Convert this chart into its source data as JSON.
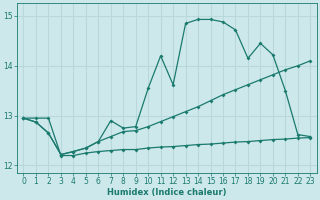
{
  "background_color": "#cde8eb",
  "grid_color": "#b8d8dc",
  "line_color": "#1a7a6e",
  "x_label": "Humidex (Indice chaleur)",
  "xlim": [
    -0.5,
    23.5
  ],
  "ylim": [
    11.85,
    15.25
  ],
  "yticks": [
    12,
    13,
    14,
    15
  ],
  "xticks": [
    0,
    1,
    2,
    3,
    4,
    5,
    6,
    7,
    8,
    9,
    10,
    11,
    12,
    13,
    14,
    15,
    16,
    17,
    18,
    19,
    20,
    21,
    22,
    23
  ],
  "series_flat": {
    "x": [
      0,
      1,
      2,
      3,
      4,
      5,
      6,
      7,
      8,
      9,
      10,
      11,
      12,
      13,
      14,
      15,
      16,
      17,
      18,
      19,
      20,
      21,
      22,
      23
    ],
    "y": [
      12.95,
      12.95,
      12.95,
      12.2,
      12.2,
      12.25,
      12.28,
      12.3,
      12.32,
      12.32,
      12.35,
      12.37,
      12.38,
      12.4,
      12.42,
      12.43,
      12.45,
      12.47,
      12.48,
      12.5,
      12.52,
      12.53,
      12.55,
      12.56
    ]
  },
  "series_trend": {
    "x": [
      0,
      1,
      2,
      3,
      4,
      5,
      6,
      7,
      8,
      9,
      10,
      11,
      12,
      13,
      14,
      15,
      16,
      17,
      18,
      19,
      20,
      21,
      22,
      23
    ],
    "y": [
      12.95,
      12.87,
      12.65,
      12.22,
      12.28,
      12.35,
      12.48,
      12.58,
      12.68,
      12.7,
      12.78,
      12.88,
      12.98,
      13.08,
      13.18,
      13.3,
      13.42,
      13.52,
      13.62,
      13.72,
      13.82,
      13.92,
      14.0,
      14.1
    ]
  },
  "series_main": {
    "x": [
      0,
      1,
      2,
      3,
      4,
      5,
      6,
      7,
      8,
      9,
      10,
      11,
      12,
      13,
      14,
      15,
      16,
      17,
      18,
      19,
      20,
      21,
      22,
      23
    ],
    "y": [
      12.95,
      12.87,
      12.65,
      12.22,
      12.28,
      12.35,
      12.48,
      12.9,
      12.75,
      12.78,
      13.55,
      14.2,
      13.62,
      14.85,
      14.93,
      14.93,
      14.88,
      14.72,
      14.15,
      14.45,
      14.22,
      13.5,
      12.62,
      12.58
    ]
  }
}
